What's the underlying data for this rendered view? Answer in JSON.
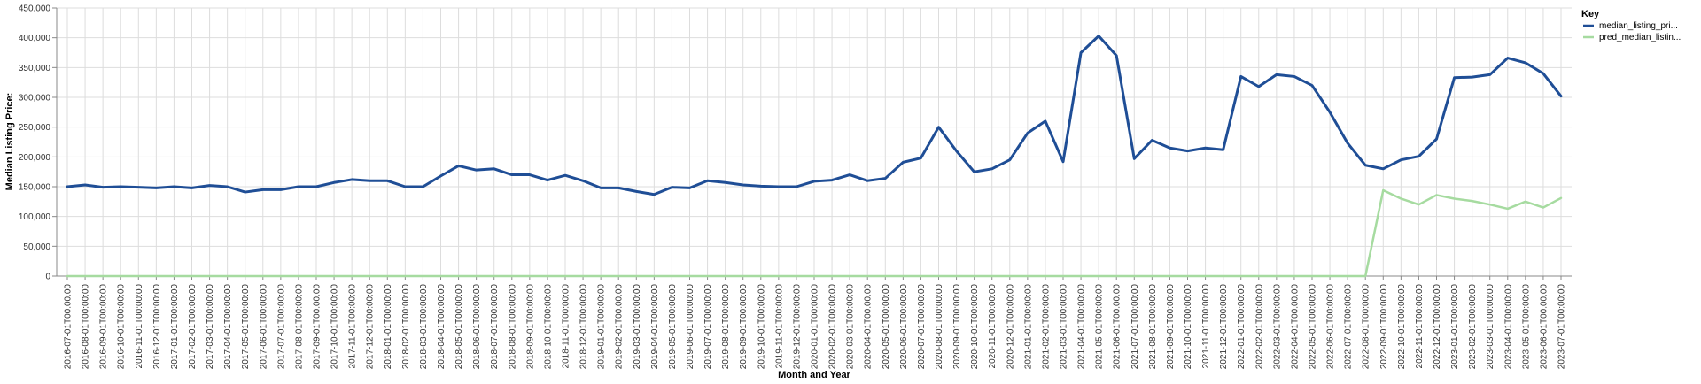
{
  "chart_data": {
    "type": "line",
    "xlabel": "Month and Year",
    "ylabel": "Median Listing Price:",
    "ylim": [
      0,
      450000
    ],
    "yticks": [
      "0",
      "50,000",
      "100,000",
      "150,000",
      "200,000",
      "250,000",
      "300,000",
      "350,000",
      "400,000",
      "450,000"
    ],
    "ytick_values": [
      0,
      50000,
      100000,
      150000,
      200000,
      250000,
      300000,
      350000,
      400000,
      450000
    ],
    "grid": true,
    "legend": {
      "title": "Key",
      "placement": "right"
    },
    "x": [
      "2016-07-01T00:00:00",
      "2016-08-01T00:00:00",
      "2016-09-01T00:00:00",
      "2016-10-01T00:00:00",
      "2016-11-01T00:00:00",
      "2016-12-01T00:00:00",
      "2017-01-01T00:00:00",
      "2017-02-01T00:00:00",
      "2017-03-01T00:00:00",
      "2017-04-01T00:00:00",
      "2017-05-01T00:00:00",
      "2017-06-01T00:00:00",
      "2017-07-01T00:00:00",
      "2017-08-01T00:00:00",
      "2017-09-01T00:00:00",
      "2017-10-01T00:00:00",
      "2017-11-01T00:00:00",
      "2017-12-01T00:00:00",
      "2018-01-01T00:00:00",
      "2018-02-01T00:00:00",
      "2018-03-01T00:00:00",
      "2018-04-01T00:00:00",
      "2018-05-01T00:00:00",
      "2018-06-01T00:00:00",
      "2018-07-01T00:00:00",
      "2018-08-01T00:00:00",
      "2018-09-01T00:00:00",
      "2018-10-01T00:00:00",
      "2018-11-01T00:00:00",
      "2018-12-01T00:00:00",
      "2019-01-01T00:00:00",
      "2019-02-01T00:00:00",
      "2019-03-01T00:00:00",
      "2019-04-01T00:00:00",
      "2019-05-01T00:00:00",
      "2019-06-01T00:00:00",
      "2019-07-01T00:00:00",
      "2019-08-01T00:00:00",
      "2019-09-01T00:00:00",
      "2019-10-01T00:00:00",
      "2019-11-01T00:00:00",
      "2019-12-01T00:00:00",
      "2020-01-01T00:00:00",
      "2020-02-01T00:00:00",
      "2020-03-01T00:00:00",
      "2020-04-01T00:00:00",
      "2020-05-01T00:00:00",
      "2020-06-01T00:00:00",
      "2020-07-01T00:00:00",
      "2020-08-01T00:00:00",
      "2020-09-01T00:00:00",
      "2020-10-01T00:00:00",
      "2020-11-01T00:00:00",
      "2020-12-01T00:00:00",
      "2021-01-01T00:00:00",
      "2021-02-01T00:00:00",
      "2021-03-01T00:00:00",
      "2021-04-01T00:00:00",
      "2021-05-01T00:00:00",
      "2021-06-01T00:00:00",
      "2021-07-01T00:00:00",
      "2021-08-01T00:00:00",
      "2021-09-01T00:00:00",
      "2021-10-01T00:00:00",
      "2021-11-01T00:00:00",
      "2021-12-01T00:00:00",
      "2022-01-01T00:00:00",
      "2022-02-01T00:00:00",
      "2022-03-01T00:00:00",
      "2022-04-01T00:00:00",
      "2022-05-01T00:00:00",
      "2022-06-01T00:00:00",
      "2022-07-01T00:00:00",
      "2022-08-01T00:00:00",
      "2022-09-01T00:00:00",
      "2022-10-01T00:00:00",
      "2022-11-01T00:00:00",
      "2022-12-01T00:00:00",
      "2023-01-01T00:00:00",
      "2023-02-01T00:00:00",
      "2023-03-01T00:00:00",
      "2023-04-01T00:00:00",
      "2023-05-01T00:00:00",
      "2023-06-01T00:00:00",
      "2023-07-01T00:00:00"
    ],
    "series": [
      {
        "name": "median_listing_pri...",
        "color": "#1f4e96",
        "values": [
          150000,
          153000,
          149000,
          150000,
          149000,
          148000,
          150000,
          148000,
          152000,
          150000,
          141000,
          145000,
          145000,
          150000,
          150000,
          157000,
          162000,
          160000,
          160000,
          150000,
          150000,
          168000,
          185000,
          178000,
          180000,
          170000,
          170000,
          161000,
          169000,
          160000,
          148000,
          148000,
          142000,
          137000,
          149000,
          148000,
          160000,
          157000,
          153000,
          151000,
          150000,
          150000,
          159000,
          161000,
          170000,
          160000,
          164000,
          191000,
          198000,
          250000,
          210000,
          175000,
          180000,
          195000,
          240000,
          260000,
          192000,
          375000,
          403000,
          370000,
          197000,
          228000,
          215000,
          210000,
          215000,
          212000,
          335000,
          318000,
          338000,
          335000,
          320000,
          275000,
          223000,
          186000,
          180000,
          195000,
          201000,
          230000,
          333000,
          334000,
          338000,
          366000,
          358000,
          340000,
          302000
        ]
      },
      {
        "name": "pred_median_listin...",
        "color": "#a6dba0",
        "values": [
          0,
          0,
          0,
          0,
          0,
          0,
          0,
          0,
          0,
          0,
          0,
          0,
          0,
          0,
          0,
          0,
          0,
          0,
          0,
          0,
          0,
          0,
          0,
          0,
          0,
          0,
          0,
          0,
          0,
          0,
          0,
          0,
          0,
          0,
          0,
          0,
          0,
          0,
          0,
          0,
          0,
          0,
          0,
          0,
          0,
          0,
          0,
          0,
          0,
          0,
          0,
          0,
          0,
          0,
          0,
          0,
          0,
          0,
          0,
          0,
          0,
          0,
          0,
          0,
          0,
          0,
          0,
          0,
          0,
          0,
          0,
          0,
          0,
          0,
          144000,
          130000,
          120000,
          136000,
          130000,
          126000,
          120000,
          113000,
          125000,
          115000,
          131000
        ]
      }
    ]
  }
}
